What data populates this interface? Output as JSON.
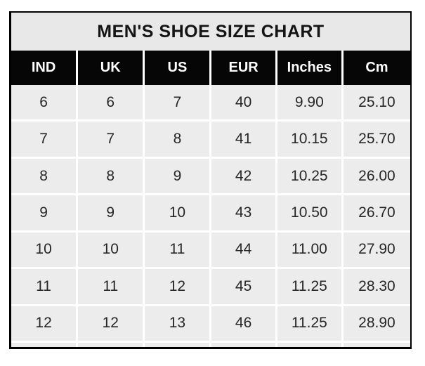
{
  "title": "MEN'S SHOE SIZE CHART",
  "colors": {
    "title_bg": "#e9e8e8",
    "header_bg": "#060606",
    "header_text": "#ffffff",
    "cell_bg": "#ececec",
    "cell_text": "#262626",
    "grid_separator": "#ffffff",
    "outer_border": "#000000",
    "page_bg": "#ffffff"
  },
  "table": {
    "columns": [
      "IND",
      "UK",
      "US",
      "EUR",
      "Inches",
      "Cm"
    ],
    "rows": [
      [
        "6",
        "6",
        "7",
        "40",
        "9.90",
        "25.10"
      ],
      [
        "7",
        "7",
        "8",
        "41",
        "10.15",
        "25.70"
      ],
      [
        "8",
        "8",
        "9",
        "42",
        "10.25",
        "26.00"
      ],
      [
        "9",
        "9",
        "10",
        "43",
        "10.50",
        "26.70"
      ],
      [
        "10",
        "10",
        "11",
        "44",
        "11.00",
        "27.90"
      ],
      [
        "11",
        "11",
        "12",
        "45",
        "11.25",
        "28.30"
      ],
      [
        "12",
        "12",
        "13",
        "46",
        "11.25",
        "28.90"
      ]
    ]
  },
  "chart_data": {
    "type": "table",
    "title": "MEN'S SHOE SIZE CHART",
    "columns": [
      "IND",
      "UK",
      "US",
      "EUR",
      "Inches",
      "Cm"
    ],
    "rows": [
      [
        6,
        6,
        7,
        40,
        9.9,
        25.1
      ],
      [
        7,
        7,
        8,
        41,
        10.15,
        25.7
      ],
      [
        8,
        8,
        9,
        42,
        10.25,
        26.0
      ],
      [
        9,
        9,
        10,
        43,
        10.5,
        26.7
      ],
      [
        10,
        10,
        11,
        44,
        11.0,
        27.9
      ],
      [
        11,
        11,
        12,
        45,
        11.25,
        28.3
      ],
      [
        12,
        12,
        13,
        46,
        11.25,
        28.9
      ]
    ],
    "layout": {
      "header_style": "black-on-white",
      "grid": true,
      "legend": "none"
    }
  }
}
